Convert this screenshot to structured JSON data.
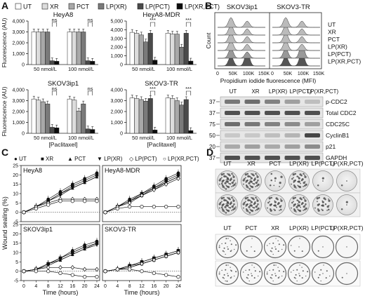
{
  "panel_letters": [
    "A",
    "B",
    "C",
    "D"
  ],
  "panelA": {
    "legend": [
      "UT",
      "XR",
      "PCT",
      "LP(XR)",
      "LP(PCT)",
      "LP(XR,PCT)"
    ],
    "legend_colors": [
      "#ffffff",
      "#dcdcdc",
      "#a8a8a8",
      "#7a7a7a",
      "#4a4a4a",
      "#0c0c0c"
    ],
    "ylabel": "Fluorescence (AU)",
    "xticks": [
      "50 nmol/L",
      "100 nmol/L"
    ],
    "xlabel": "[Paclitaxel]",
    "sig_ns": "ns",
    "sig_star": "***",
    "yticks_small": [
      "0",
      "1,000",
      "2,000",
      "3,000",
      "4,000"
    ],
    "yticks_mdr": [
      "0",
      "1,000",
      "2,000",
      "3,000",
      "4,000",
      "5,000"
    ]
  },
  "panelB": {
    "flow_titles": [
      "SKOV3ip1",
      "SKOV3-TR"
    ],
    "flow_ylabel": "Count",
    "flow_xlabel": "Propidium iodide fluorescence (MFI)",
    "flow_xticks": [
      "0",
      "50K",
      "100K",
      "150K"
    ],
    "flow_conditions": [
      "UT",
      "XR",
      "PCT",
      "LP(XR)",
      "LP(PCT)",
      "LP(XR,PCT)"
    ],
    "blot_columns": [
      "UT",
      "XR",
      "LP(XR)",
      "LP(PCT)",
      "LP(XR,PCT)"
    ],
    "blot_rows": [
      {
        "mw": "37",
        "label": "p-CDC2"
      },
      {
        "mw": "37",
        "label": "Total CDC2"
      },
      {
        "mw": "75",
        "label": "CDC25C"
      },
      {
        "mw": "50",
        "label": "CyclinB1"
      },
      {
        "mw": "20",
        "label": "p21"
      },
      {
        "mw": "37",
        "label": "GAPDH"
      }
    ]
  },
  "panelC": {
    "legend": [
      "UT",
      "XR",
      "PCT",
      "LP(XR)",
      "LP(PCT)",
      "LP(XR,PCT)"
    ],
    "legend_markers": [
      "●",
      "■",
      "▲",
      "▼",
      "◇",
      "○"
    ],
    "ylabel": "Wound sealing (%)",
    "xlabel": "Time (hours)",
    "xticks": [
      "0",
      "4",
      "8",
      "12",
      "16",
      "20",
      "24"
    ],
    "yticks": [
      "-5",
      "0",
      "5",
      "10",
      "15",
      "20",
      "25"
    ]
  },
  "panelD": {
    "top_columns": [
      "UT",
      "XR",
      "PCT",
      "LP(XR)",
      "LP(PCT)",
      "LP(XR,PCT)"
    ],
    "bottom_columns": [
      "UT",
      "PCT",
      "XR",
      "LP(XR)",
      "LP(PCT)",
      "LP(XR,PCT)"
    ],
    "row_labels": [
      "SKOV3ip1",
      "SKOV3 -TR",
      "SKOV3ip1",
      "SKOV3 -TR"
    ]
  },
  "chart_data": [
    {
      "type": "bar",
      "title": "HeyA8",
      "xlabel": "",
      "ylabel": "Fluorescence (AU)",
      "categories": [
        "50 nmol/L",
        "100 nmol/L"
      ],
      "ylim": [
        0,
        4000
      ],
      "series": [
        {
          "name": "UT",
          "values": [
            3000,
            3000
          ]
        },
        {
          "name": "XR",
          "values": [
            3000,
            3000
          ]
        },
        {
          "name": "PCT",
          "values": [
            3000,
            3000
          ]
        },
        {
          "name": "LP(XR)",
          "values": [
            3000,
            3000
          ]
        },
        {
          "name": "LP(PCT)",
          "values": [
            350,
            350
          ]
        },
        {
          "name": "LP(XR,PCT)",
          "values": [
            300,
            300
          ]
        }
      ],
      "annotations": [
        "ns",
        "ns"
      ]
    },
    {
      "type": "bar",
      "title": "HeyA8-MDR",
      "xlabel": "",
      "ylabel": "",
      "categories": [
        "50 nmol/L",
        "100 nmol/L"
      ],
      "ylim": [
        0,
        5000
      ],
      "series": [
        {
          "name": "UT",
          "values": [
            3700,
            3600
          ]
        },
        {
          "name": "XR",
          "values": [
            3600,
            3500
          ]
        },
        {
          "name": "PCT",
          "values": [
            3400,
            3500
          ]
        },
        {
          "name": "LP(XR)",
          "values": [
            2600,
            2000
          ]
        },
        {
          "name": "LP(PCT)",
          "values": [
            3600,
            3600
          ]
        },
        {
          "name": "LP(XR,PCT)",
          "values": [
            500,
            400
          ]
        }
      ],
      "annotations": [
        "***",
        "***"
      ]
    },
    {
      "type": "bar",
      "title": "SKOV3ip1",
      "xlabel": "[Paclitaxel]",
      "ylabel": "Fluorescence (AU)",
      "categories": [
        "50 nmol/L",
        "100 nmol/L"
      ],
      "ylim": [
        0,
        4000
      ],
      "series": [
        {
          "name": "UT",
          "values": [
            3150,
            3150
          ]
        },
        {
          "name": "XR",
          "values": [
            3050,
            3050
          ]
        },
        {
          "name": "PCT",
          "values": [
            2900,
            2050
          ]
        },
        {
          "name": "LP(XR)",
          "values": [
            2700,
            2700
          ]
        },
        {
          "name": "LP(PCT)",
          "values": [
            550,
            400
          ]
        },
        {
          "name": "LP(XR,PCT)",
          "values": [
            500,
            350
          ]
        }
      ],
      "annotations": [
        "ns",
        "ns"
      ]
    },
    {
      "type": "bar",
      "title": "SKOV3-TR",
      "xlabel": "[Paclitaxel]",
      "ylabel": "",
      "categories": [
        "50 nmol/L",
        "100 nmol/L"
      ],
      "ylim": [
        0,
        4000
      ],
      "series": [
        {
          "name": "UT",
          "values": [
            3250,
            3250
          ]
        },
        {
          "name": "XR",
          "values": [
            3200,
            3200
          ]
        },
        {
          "name": "PCT",
          "values": [
            3100,
            3000
          ]
        },
        {
          "name": "LP(XR)",
          "values": [
            2950,
            2600
          ]
        },
        {
          "name": "LP(PCT)",
          "values": [
            3200,
            3100
          ]
        },
        {
          "name": "LP(XR,PCT)",
          "values": [
            300,
            250
          ]
        }
      ],
      "annotations": [
        "***",
        "***"
      ]
    },
    {
      "type": "line",
      "title": "HeyA8",
      "xlabel": "Time (hours)",
      "ylabel": "Wound sealing (%)",
      "x": [
        0,
        4,
        8,
        12,
        16,
        20,
        24
      ],
      "ylim": [
        -5,
        25
      ],
      "series": [
        {
          "name": "UT",
          "values": [
            0,
            3,
            7,
            11,
            15,
            18,
            21
          ]
        },
        {
          "name": "XR",
          "values": [
            0,
            3,
            6,
            10,
            14,
            17,
            20
          ]
        },
        {
          "name": "PCT",
          "values": [
            0,
            3,
            6,
            10,
            13,
            16,
            19
          ]
        },
        {
          "name": "LP(XR)",
          "values": [
            0,
            3,
            6,
            9,
            13,
            16,
            19
          ]
        },
        {
          "name": "LP(PCT)",
          "values": [
            0,
            3,
            5,
            7,
            7,
            7,
            7
          ]
        },
        {
          "name": "LP(XR,PCT)",
          "values": [
            0,
            2,
            4,
            6,
            6,
            6,
            6
          ]
        }
      ]
    },
    {
      "type": "line",
      "title": "HeyA8-MDR",
      "xlabel": "Time (hours)",
      "ylabel": "",
      "x": [
        0,
        4,
        8,
        12,
        16,
        20,
        24
      ],
      "ylim": [
        -5,
        25
      ],
      "series": [
        {
          "name": "UT",
          "values": [
            0,
            3,
            7,
            10,
            14,
            18,
            21
          ]
        },
        {
          "name": "XR",
          "values": [
            0,
            3,
            6,
            10,
            13,
            17,
            20
          ]
        },
        {
          "name": "PCT",
          "values": [
            0,
            3,
            6,
            9,
            13,
            16,
            19
          ]
        },
        {
          "name": "LP(XR)",
          "values": [
            0,
            3,
            6,
            9,
            12,
            16,
            19
          ]
        },
        {
          "name": "LP(PCT)",
          "values": [
            0,
            3,
            5,
            9,
            12,
            15,
            18
          ]
        },
        {
          "name": "LP(XR,PCT)",
          "values": [
            0,
            2,
            3,
            3,
            3,
            3,
            3
          ]
        }
      ]
    },
    {
      "type": "line",
      "title": "SKOV3ip1",
      "xlabel": "Time (hours)",
      "ylabel": "Wound sealing (%)",
      "x": [
        0,
        4,
        8,
        12,
        16,
        20,
        24
      ],
      "ylim": [
        -5,
        25
      ],
      "series": [
        {
          "name": "UT",
          "values": [
            0,
            1,
            4,
            7,
            11,
            14,
            16
          ]
        },
        {
          "name": "XR",
          "values": [
            0,
            1,
            4,
            7,
            10,
            13,
            15
          ]
        },
        {
          "name": "PCT",
          "values": [
            0,
            1,
            4,
            6,
            9,
            12,
            15
          ]
        },
        {
          "name": "LP(XR)",
          "values": [
            0,
            1,
            3,
            6,
            9,
            12,
            14
          ]
        },
        {
          "name": "LP(PCT)",
          "values": [
            0,
            1,
            2,
            2,
            2,
            1,
            1
          ]
        },
        {
          "name": "LP(XR,PCT)",
          "values": [
            0,
            0,
            0,
            -1,
            -2,
            -3,
            -3
          ]
        }
      ]
    },
    {
      "type": "line",
      "title": "SKOV3-TR",
      "xlabel": "Time (hours)",
      "ylabel": "",
      "x": [
        0,
        4,
        8,
        12,
        16,
        20,
        24
      ],
      "ylim": [
        -5,
        25
      ],
      "series": [
        {
          "name": "UT",
          "values": [
            0,
            1,
            3,
            5,
            7,
            9,
            11
          ]
        },
        {
          "name": "XR",
          "values": [
            0,
            1,
            3,
            5,
            7,
            9,
            11
          ]
        },
        {
          "name": "PCT",
          "values": [
            0,
            1,
            3,
            4,
            6,
            8,
            10
          ]
        },
        {
          "name": "LP(XR)",
          "values": [
            0,
            1,
            2,
            4,
            6,
            8,
            10
          ]
        },
        {
          "name": "LP(PCT)",
          "values": [
            0,
            1,
            2,
            4,
            6,
            8,
            10
          ]
        },
        {
          "name": "LP(XR,PCT)",
          "values": [
            0,
            1,
            1,
            0,
            -1,
            -2,
            -3
          ]
        }
      ]
    }
  ]
}
